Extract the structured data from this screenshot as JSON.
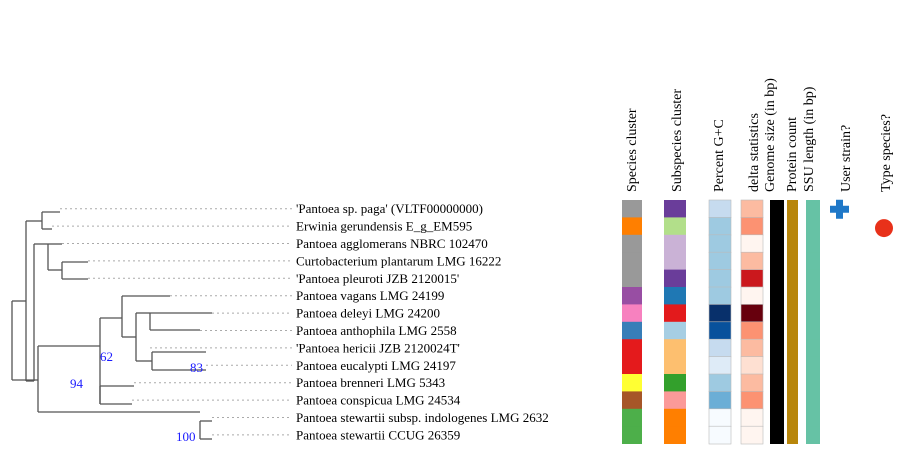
{
  "headers": {
    "species_cluster": "Species cluster",
    "subspecies_cluster": "Subspecies cluster",
    "percent_gc": "Percent G+C",
    "delta_statistics": "delta statistics",
    "genome_size": "Genome size (in bp)",
    "protein_count": "Protein count",
    "ssu_length": "SSU length (in bp)",
    "user_strain": "User strain?",
    "type_species": "Type species?"
  },
  "bootstrap": {
    "b62": "62",
    "b94": "94",
    "b83": "83",
    "b100": "100"
  },
  "taxa": [
    {
      "label": "'Pantoea sp. paga' (VLTF00000000)",
      "species_color": "#999999",
      "subspecies_color": "#6a3d9a",
      "gc_color": "#c6dbef",
      "delta_color": "#fcbba1",
      "genome_color": "#000000",
      "protein_color": "#b8860b",
      "ssu_color": "#66c2a5",
      "user_strain": true,
      "type_species": false
    },
    {
      "label": "Erwinia gerundensis E_g_EM595",
      "species_color": "#ff7f00",
      "subspecies_color": "#b2df8a",
      "gc_color": "#9ecae1",
      "delta_color": "#fc9272",
      "genome_color": "#000000",
      "protein_color": "#b8860b",
      "ssu_color": "#66c2a5",
      "user_strain": false,
      "type_species": true
    },
    {
      "label": "Pantoea agglomerans NBRC 102470",
      "species_color": "#999999",
      "subspecies_color": "#cab2d6",
      "gc_color": "#9ecae1",
      "delta_color": "#fff5f0",
      "genome_color": "#000000",
      "protein_color": "#b8860b",
      "ssu_color": "#66c2a5",
      "user_strain": false,
      "type_species": false
    },
    {
      "label": "Curtobacterium plantarum LMG 16222",
      "species_color": "#999999",
      "subspecies_color": "#cab2d6",
      "gc_color": "#9ecae1",
      "delta_color": "#fcbba1",
      "genome_color": "#000000",
      "protein_color": "#b8860b",
      "ssu_color": "#66c2a5",
      "user_strain": false,
      "type_species": false
    },
    {
      "label": "'Pantoea pleuroti JZB 2120015'",
      "species_color": "#999999",
      "subspecies_color": "#6a3d9a",
      "gc_color": "#9ecae1",
      "delta_color": "#cb181d",
      "genome_color": "#000000",
      "protein_color": "#b8860b",
      "ssu_color": "#66c2a5",
      "user_strain": false,
      "type_species": false
    },
    {
      "label": "Pantoea vagans LMG 24199",
      "species_color": "#984ea3",
      "subspecies_color": "#1f78b4",
      "gc_color": "#9ecae1",
      "delta_color": "#fff5f0",
      "genome_color": "#000000",
      "protein_color": "#b8860b",
      "ssu_color": "#66c2a5",
      "user_strain": false,
      "type_species": false
    },
    {
      "label": "Pantoea deleyi LMG 24200",
      "species_color": "#f781bf",
      "subspecies_color": "#e31a1c",
      "gc_color": "#08306b",
      "delta_color": "#67000d",
      "genome_color": "#000000",
      "protein_color": "#b8860b",
      "ssu_color": "#66c2a5",
      "user_strain": false,
      "type_species": false
    },
    {
      "label": "Pantoea anthophila LMG 2558",
      "species_color": "#377eb8",
      "subspecies_color": "#a6cee3",
      "gc_color": "#08519c",
      "delta_color": "#fc9272",
      "genome_color": "#000000",
      "protein_color": "#b8860b",
      "ssu_color": "#66c2a5",
      "user_strain": false,
      "type_species": false
    },
    {
      "label": "'Pantoea hericii JZB 2120024T'",
      "species_color": "#e41a1c",
      "subspecies_color": "#fdbf6f",
      "gc_color": "#c6dbef",
      "delta_color": "#fcbba1",
      "genome_color": "#000000",
      "protein_color": "#b8860b",
      "ssu_color": "#66c2a5",
      "user_strain": false,
      "type_species": false
    },
    {
      "label": "Pantoea eucalypti LMG 24197",
      "species_color": "#e41a1c",
      "subspecies_color": "#fdbf6f",
      "gc_color": "#deebf7",
      "delta_color": "#fee0d2",
      "genome_color": "#000000",
      "protein_color": "#b8860b",
      "ssu_color": "#66c2a5",
      "user_strain": false,
      "type_species": false
    },
    {
      "label": "Pantoea brenneri LMG 5343",
      "species_color": "#ffff33",
      "subspecies_color": "#33a02c",
      "gc_color": "#9ecae1",
      "delta_color": "#fcbba1",
      "genome_color": "#000000",
      "protein_color": "#b8860b",
      "ssu_color": "#66c2a5",
      "user_strain": false,
      "type_species": false
    },
    {
      "label": "Pantoea conspicua LMG 24534",
      "species_color": "#a65628",
      "subspecies_color": "#fb9a99",
      "gc_color": "#6baed6",
      "delta_color": "#fc9272",
      "genome_color": "#000000",
      "protein_color": "#b8860b",
      "ssu_color": "#66c2a5",
      "user_strain": false,
      "type_species": false
    },
    {
      "label": "Pantoea stewartii subsp. indologenes LMG 2632",
      "species_color": "#4daf4a",
      "subspecies_color": "#ff7f00",
      "gc_color": "#f7fbff",
      "delta_color": "#fff5f0",
      "genome_color": "#000000",
      "protein_color": "#b8860b",
      "ssu_color": "#66c2a5",
      "user_strain": false,
      "type_species": false
    },
    {
      "label": "Pantoea stewartii CCUG 26359",
      "species_color": "#4daf4a",
      "subspecies_color": "#ff7f00",
      "gc_color": "#f7fbff",
      "delta_color": "#fff5f0",
      "genome_color": "#000000",
      "protein_color": "#b8860b",
      "ssu_color": "#66c2a5",
      "user_strain": false,
      "type_species": false
    }
  ],
  "colors": {
    "user_strain_cross": "#1f78c8",
    "type_species_dot": "#e8311a",
    "branch": "#555555",
    "dotted": "#aaaaaa"
  }
}
